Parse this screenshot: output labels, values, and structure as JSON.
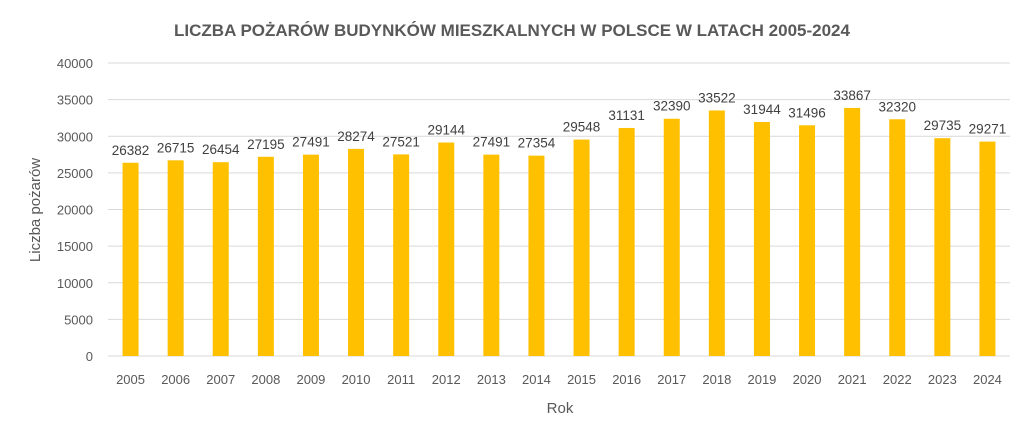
{
  "chart_data": {
    "type": "bar",
    "title": "LICZBA POŻARÓW BUDYNKÓW MIESZKALNYCH W POLSCE W LATACH 2005-2024",
    "xlabel": "Rok",
    "ylabel": "Liczba pożarów",
    "categories": [
      "2005",
      "2006",
      "2007",
      "2008",
      "2009",
      "2010",
      "2011",
      "2012",
      "2013",
      "2014",
      "2015",
      "2016",
      "2017",
      "2018",
      "2019",
      "2020",
      "2021",
      "2022",
      "2023",
      "2024"
    ],
    "values": [
      26382,
      26715,
      26454,
      27195,
      27491,
      28274,
      27521,
      29144,
      27491,
      27354,
      29548,
      31131,
      32390,
      33522,
      31944,
      31496,
      33867,
      32320,
      29735,
      29271
    ],
    "ylim": [
      0,
      40000
    ],
    "yticks": [
      0,
      5000,
      10000,
      15000,
      20000,
      25000,
      30000,
      35000,
      40000
    ],
    "grid": true,
    "legend": "none",
    "bar_color": "#FFC000",
    "data_labels": true
  }
}
